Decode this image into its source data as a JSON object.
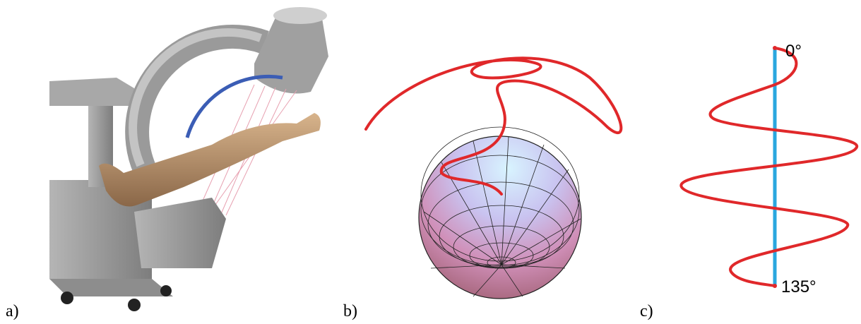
{
  "panels": [
    {
      "label": "a)"
    },
    {
      "label": "b)"
    },
    {
      "label": "c)",
      "annotations": [
        "0°",
        "135°"
      ]
    }
  ]
}
